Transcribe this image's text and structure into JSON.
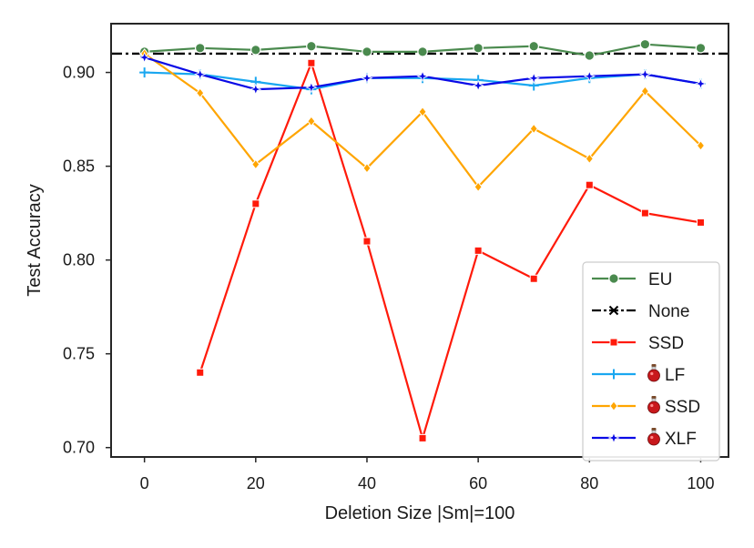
{
  "chart_data": {
    "type": "line",
    "title": "",
    "xlabel": "Deletion Size |Sm|=100",
    "ylabel": "Test Accuracy",
    "xlim": [
      -6,
      105
    ],
    "ylim": [
      0.695,
      0.926
    ],
    "xticks": [
      0,
      20,
      40,
      60,
      80,
      100
    ],
    "xtick_labels": [
      "0",
      "20",
      "40",
      "60",
      "80",
      "100"
    ],
    "yticks": [
      0.7,
      0.75,
      0.8,
      0.85,
      0.9
    ],
    "ytick_labels": [
      "0.70",
      "0.75",
      "0.80",
      "0.85",
      "0.90"
    ],
    "grid": false,
    "legend_position": "lower-right",
    "baseline": {
      "name": "None",
      "value": 0.91,
      "color": "#000000",
      "style": "dashdot",
      "marker": "x"
    },
    "series": [
      {
        "name": "EU",
        "potion": false,
        "color": "#4a8a4e",
        "marker": "circle",
        "x": [
          0,
          10,
          20,
          30,
          40,
          50,
          60,
          70,
          80,
          90,
          100
        ],
        "y": [
          0.911,
          0.913,
          0.912,
          0.914,
          0.911,
          0.911,
          0.913,
          0.914,
          0.909,
          0.915,
          0.913
        ]
      },
      {
        "name": "SSD",
        "potion": false,
        "color": "#ff1a0a",
        "marker": "square",
        "x": [
          10,
          20,
          30,
          40,
          50,
          60,
          70,
          80,
          90,
          100
        ],
        "y": [
          0.74,
          0.83,
          0.905,
          0.81,
          0.705,
          0.805,
          0.79,
          0.84,
          0.825,
          0.82
        ]
      },
      {
        "name": "LF",
        "potion": true,
        "color": "#1aa7f0",
        "marker": "plus",
        "x": [
          0,
          10,
          20,
          30,
          40,
          50,
          60,
          70,
          80,
          90,
          100
        ],
        "y": [
          0.9,
          0.899,
          0.895,
          0.891,
          0.897,
          0.897,
          0.896,
          0.893,
          0.897,
          0.899,
          0.894
        ]
      },
      {
        "name": "SSD",
        "potion": true,
        "color": "#ffa500",
        "marker": "diamond",
        "x": [
          0,
          10,
          20,
          30,
          40,
          50,
          60,
          70,
          80,
          90,
          100
        ],
        "y": [
          0.91,
          0.889,
          0.851,
          0.874,
          0.849,
          0.879,
          0.839,
          0.87,
          0.854,
          0.89,
          0.861
        ]
      },
      {
        "name": "XLF",
        "potion": true,
        "color": "#0a0ae6",
        "marker": "star",
        "x": [
          0,
          10,
          20,
          30,
          40,
          50,
          60,
          70,
          80,
          90,
          100
        ],
        "y": [
          0.908,
          0.899,
          0.891,
          0.892,
          0.897,
          0.898,
          0.893,
          0.897,
          0.898,
          0.899,
          0.894
        ]
      }
    ],
    "legend": [
      {
        "label": "EU",
        "color": "#4a8a4e",
        "marker": "circle",
        "potion": false,
        "dash": "solid"
      },
      {
        "label": "None",
        "color": "#000000",
        "marker": "x",
        "potion": false,
        "dash": "dashdot"
      },
      {
        "label": "SSD",
        "color": "#ff1a0a",
        "marker": "square",
        "potion": false,
        "dash": "solid"
      },
      {
        "label": "LF",
        "color": "#1aa7f0",
        "marker": "plus",
        "potion": true,
        "dash": "solid"
      },
      {
        "label": "SSD",
        "color": "#ffa500",
        "marker": "diamond",
        "potion": true,
        "dash": "solid"
      },
      {
        "label": "XLF",
        "color": "#0a0ae6",
        "marker": "star",
        "potion": true,
        "dash": "solid"
      }
    ]
  }
}
